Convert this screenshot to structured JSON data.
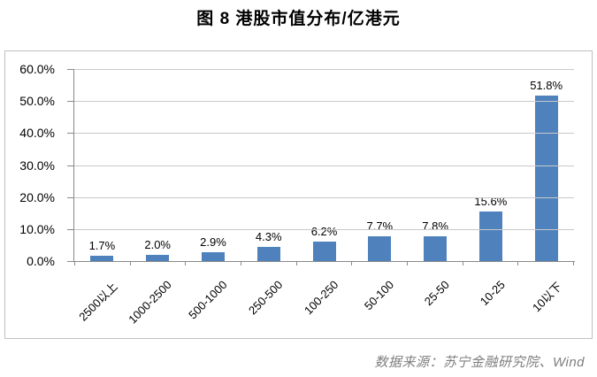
{
  "page": {
    "title": "图 8 港股市值分布/亿港元",
    "source_note": "数据来源：苏宁金融研究院、Wind"
  },
  "colors": {
    "bar": "#4f81bd",
    "gridline": "#c9c9c9",
    "axis": "#898989",
    "frame_border": "#bfbfbf",
    "title_text": "#000000",
    "tick_label_text": "#000000",
    "source_text": "#7f7f7f",
    "background": "#ffffff"
  },
  "chart_data": {
    "type": "bar",
    "title": "图 8 港股市值分布/亿港元",
    "categories": [
      "2500以上",
      "1000-2500",
      "500-1000",
      "250-500",
      "100-250",
      "50-100",
      "25-50",
      "10-25",
      "10以下"
    ],
    "values": [
      1.7,
      2.0,
      2.9,
      4.3,
      6.2,
      7.7,
      7.8,
      15.6,
      51.8
    ],
    "data_labels": [
      "1.7%",
      "2.0%",
      "2.9%",
      "4.3%",
      "6.2%",
      "7.7%",
      "7.8%",
      "15.6%",
      "51.8%"
    ],
    "xlabel": "",
    "ylabel": "",
    "ylim": [
      0,
      60
    ],
    "ytick_step": 10,
    "ytick_labels": [
      "0.0%",
      "10.0%",
      "20.0%",
      "30.0%",
      "40.0%",
      "50.0%",
      "60.0%"
    ],
    "x_label_rotation_deg": 45,
    "grid": true,
    "legend": false,
    "bar_color": "#4f81bd"
  }
}
